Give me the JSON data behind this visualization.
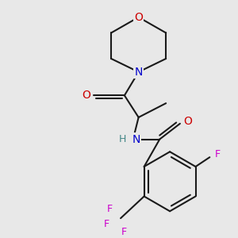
{
  "bg_color": "#e8e8e8",
  "bond_color": "#1a1a1a",
  "o_color": "#cc0000",
  "n_color": "#0000cc",
  "f_color": "#cc00cc",
  "h_color": "#448888",
  "bond_lw": 1.5,
  "figsize": [
    3.0,
    3.0
  ],
  "dpi": 100,
  "xlim": [
    0,
    300
  ],
  "ylim": [
    0,
    300
  ]
}
